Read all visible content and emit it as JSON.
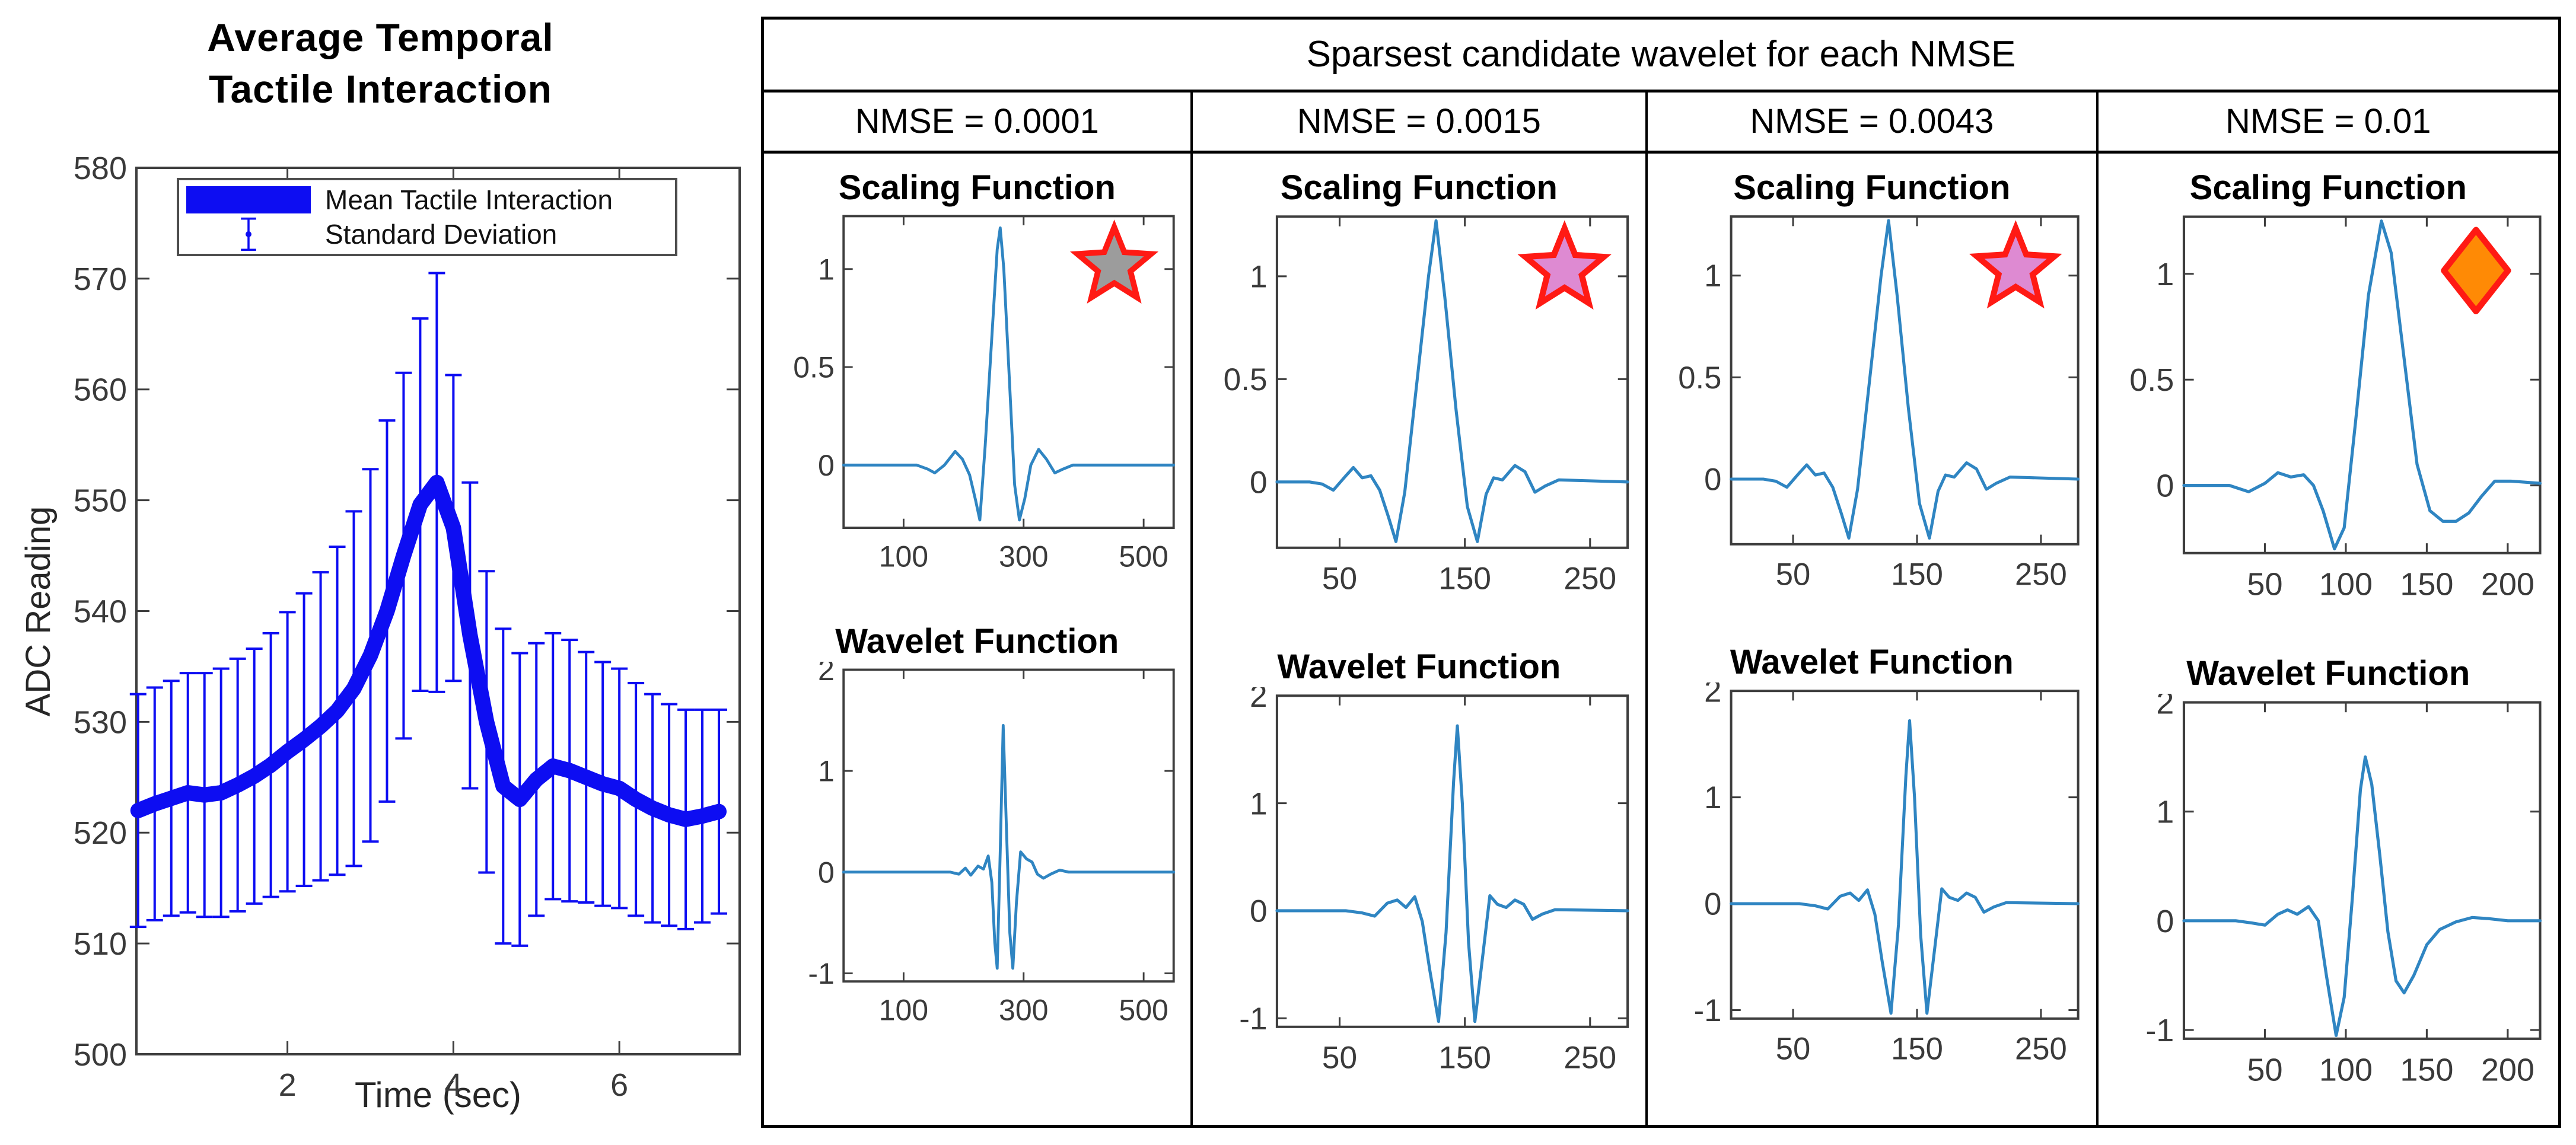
{
  "left_chart": {
    "title_line1": "Average Temporal",
    "title_line2": "Tactile Interaction",
    "ylabel": "ADC Reading",
    "xlabel": "Time (sec)",
    "legend": {
      "mean_label": "Mean Tactile Interaction",
      "std_label": "Standard Deviation"
    }
  },
  "table": {
    "title": "Sparsest candidate wavelet for each NMSE",
    "columns": [
      {
        "header": "NMSE = 0.0001"
      },
      {
        "header": "NMSE = 0.0015"
      },
      {
        "header": "NMSE = 0.0043"
      },
      {
        "header": "NMSE = 0.01"
      }
    ]
  },
  "labels": {
    "scaling_title": "Scaling Function",
    "wavelet_title": "Wavelet Function"
  },
  "colors": {
    "mean_line": "#0d0df2",
    "curve": "#2f85c2",
    "marker_stroke": "#ff1a14",
    "star_gray": "#9c9c9c",
    "star_pink": "#de8ad2",
    "diamond_orange": "#ff8a05",
    "axis": "#3e3e3e",
    "tick_text": "#3a3a3a"
  },
  "chart_data": [
    {
      "id": "svg-left",
      "type": "line",
      "title": "Average Temporal Tactile Interaction",
      "xlabel": "Time (sec)",
      "ylabel": "ADC Reading",
      "xlim": [
        0.18,
        7.45
      ],
      "ylim": [
        500,
        580
      ],
      "xticks": [
        2,
        4,
        6
      ],
      "yticks": [
        500,
        510,
        520,
        530,
        540,
        550,
        560,
        570,
        580
      ],
      "legend_position": "top-left-inside",
      "grid": false,
      "series": [
        {
          "name": "Mean Tactile Interaction",
          "x": [
            0.2,
            0.4,
            0.6,
            0.8,
            1.0,
            1.2,
            1.4,
            1.6,
            1.8,
            2.0,
            2.2,
            2.4,
            2.6,
            2.8,
            3.0,
            3.2,
            3.4,
            3.6,
            3.8,
            4.0,
            4.2,
            4.4,
            4.6,
            4.8,
            5.0,
            5.2,
            5.4,
            5.6,
            5.8,
            6.0,
            6.2,
            6.4,
            6.6,
            6.8,
            7.0,
            7.2
          ],
          "y": [
            522.0,
            522.6,
            523.1,
            523.6,
            523.4,
            523.6,
            524.3,
            525.1,
            526.1,
            527.3,
            528.4,
            529.6,
            531.0,
            533.0,
            536.0,
            540.0,
            545.0,
            549.6,
            551.6,
            547.5,
            537.8,
            530.0,
            524.2,
            523.0,
            524.8,
            526.0,
            525.6,
            525.0,
            524.4,
            524.0,
            523.0,
            522.2,
            521.6,
            521.2,
            521.5,
            521.9
          ]
        },
        {
          "name": "Standard Deviation",
          "type": "errorbar",
          "std": [
            10.5,
            10.5,
            10.6,
            10.8,
            11.0,
            11.2,
            11.4,
            11.5,
            11.9,
            12.6,
            13.2,
            13.9,
            14.8,
            16.0,
            16.8,
            17.2,
            16.5,
            16.8,
            18.9,
            13.8,
            13.8,
            13.6,
            14.2,
            13.2,
            12.3,
            12.0,
            11.8,
            11.3,
            11.0,
            10.8,
            10.5,
            10.3,
            10.0,
            9.9,
            9.6,
            9.2
          ]
        }
      ]
    },
    {
      "id": "svg-s1",
      "type": "line",
      "title": "Scaling Function",
      "nmse": "0.0001",
      "xlim": [
        0,
        550
      ],
      "ylim": [
        -0.32,
        1.27
      ],
      "xticks": [
        100,
        300,
        500
      ],
      "yticks": [
        0,
        0.5,
        1
      ],
      "marker": {
        "shape": "star",
        "fill": "#9c9c9c"
      },
      "points": [
        [
          0,
          0
        ],
        [
          122,
          0
        ],
        [
          140,
          -0.02
        ],
        [
          152,
          -0.04
        ],
        [
          168,
          0
        ],
        [
          186,
          0.07
        ],
        [
          198,
          0.03
        ],
        [
          210,
          -0.05
        ],
        [
          220,
          -0.18
        ],
        [
          227,
          -0.28
        ],
        [
          236,
          0.1
        ],
        [
          246,
          0.6
        ],
        [
          256,
          1.1
        ],
        [
          261,
          1.21
        ],
        [
          267,
          1.0
        ],
        [
          276,
          0.45
        ],
        [
          285,
          -0.1
        ],
        [
          293,
          -0.28
        ],
        [
          302,
          -0.17
        ],
        [
          312,
          0
        ],
        [
          325,
          0.08
        ],
        [
          338,
          0.03
        ],
        [
          352,
          -0.04
        ],
        [
          366,
          -0.02
        ],
        [
          382,
          0
        ],
        [
          550,
          0
        ]
      ]
    },
    {
      "id": "svg-s2",
      "type": "line",
      "title": "Scaling Function",
      "nmse": "0.0015",
      "xlim": [
        0,
        280
      ],
      "ylim": [
        -0.32,
        1.29
      ],
      "xticks": [
        50,
        150,
        250
      ],
      "yticks": [
        0,
        0.5,
        1
      ],
      "marker": {
        "shape": "star",
        "fill": "#de8ad2"
      },
      "points": [
        [
          0,
          0
        ],
        [
          26,
          0
        ],
        [
          36,
          -0.01
        ],
        [
          45,
          -0.04
        ],
        [
          55,
          0.03
        ],
        [
          61,
          0.07
        ],
        [
          68,
          0.02
        ],
        [
          75,
          0.03
        ],
        [
          82,
          -0.04
        ],
        [
          89,
          -0.17
        ],
        [
          95,
          -0.29
        ],
        [
          102,
          -0.05
        ],
        [
          112,
          0.5
        ],
        [
          121,
          1.0
        ],
        [
          127,
          1.27
        ],
        [
          134,
          0.9
        ],
        [
          143,
          0.35
        ],
        [
          152,
          -0.12
        ],
        [
          160,
          -0.29
        ],
        [
          167,
          -0.06
        ],
        [
          173,
          0.02
        ],
        [
          180,
          0.01
        ],
        [
          190,
          0.08
        ],
        [
          198,
          0.05
        ],
        [
          206,
          -0.05
        ],
        [
          214,
          -0.02
        ],
        [
          225,
          0.01
        ],
        [
          280,
          0
        ]
      ]
    },
    {
      "id": "svg-s3",
      "type": "line",
      "title": "Scaling Function",
      "nmse": "0.0043",
      "xlim": [
        0,
        280
      ],
      "ylim": [
        -0.32,
        1.29
      ],
      "xticks": [
        50,
        150,
        250
      ],
      "yticks": [
        0,
        0.5,
        1
      ],
      "marker": {
        "shape": "star",
        "fill": "#de8ad2"
      },
      "points": [
        [
          0,
          0
        ],
        [
          26,
          0
        ],
        [
          36,
          -0.01
        ],
        [
          45,
          -0.04
        ],
        [
          55,
          0.03
        ],
        [
          61,
          0.07
        ],
        [
          68,
          0.02
        ],
        [
          75,
          0.03
        ],
        [
          82,
          -0.04
        ],
        [
          89,
          -0.17
        ],
        [
          95,
          -0.29
        ],
        [
          102,
          -0.05
        ],
        [
          112,
          0.5
        ],
        [
          121,
          1.0
        ],
        [
          127,
          1.27
        ],
        [
          134,
          0.9
        ],
        [
          143,
          0.35
        ],
        [
          152,
          -0.12
        ],
        [
          160,
          -0.29
        ],
        [
          167,
          -0.06
        ],
        [
          173,
          0.02
        ],
        [
          180,
          0.01
        ],
        [
          190,
          0.08
        ],
        [
          198,
          0.05
        ],
        [
          206,
          -0.05
        ],
        [
          214,
          -0.02
        ],
        [
          225,
          0.01
        ],
        [
          280,
          0
        ]
      ]
    },
    {
      "id": "svg-s4",
      "type": "line",
      "title": "Scaling Function",
      "nmse": "0.01",
      "xlim": [
        0,
        220
      ],
      "ylim": [
        -0.32,
        1.27
      ],
      "xticks": [
        50,
        100,
        150,
        200
      ],
      "yticks": [
        0,
        0.5,
        1
      ],
      "marker": {
        "shape": "diamond",
        "fill": "#ff8a05"
      },
      "points": [
        [
          0,
          0
        ],
        [
          28,
          0
        ],
        [
          40,
          -0.03
        ],
        [
          50,
          0.01
        ],
        [
          58,
          0.06
        ],
        [
          66,
          0.04
        ],
        [
          74,
          0.05
        ],
        [
          80,
          0
        ],
        [
          86,
          -0.12
        ],
        [
          93,
          -0.3
        ],
        [
          99,
          -0.2
        ],
        [
          106,
          0.3
        ],
        [
          114,
          0.9
        ],
        [
          122,
          1.25
        ],
        [
          128,
          1.1
        ],
        [
          136,
          0.6
        ],
        [
          144,
          0.1
        ],
        [
          152,
          -0.12
        ],
        [
          160,
          -0.17
        ],
        [
          168,
          -0.17
        ],
        [
          176,
          -0.13
        ],
        [
          184,
          -0.05
        ],
        [
          192,
          0.02
        ],
        [
          202,
          0.02
        ],
        [
          220,
          0.01
        ]
      ]
    },
    {
      "id": "svg-w1",
      "type": "line",
      "title": "Wavelet Function",
      "nmse": "0.0001",
      "xlim": [
        0,
        550
      ],
      "ylim": [
        -1.08,
        2
      ],
      "xticks": [
        100,
        300,
        500
      ],
      "yticks": [
        -1,
        0,
        1,
        2
      ],
      "points": [
        [
          0,
          0
        ],
        [
          178,
          0
        ],
        [
          192,
          -0.02
        ],
        [
          203,
          0.04
        ],
        [
          212,
          -0.03
        ],
        [
          224,
          0.06
        ],
        [
          233,
          0.03
        ],
        [
          241,
          0.16
        ],
        [
          247,
          -0.1
        ],
        [
          252,
          -0.7
        ],
        [
          256,
          -0.95
        ],
        [
          261,
          0.2
        ],
        [
          266,
          1.45
        ],
        [
          271,
          0.5
        ],
        [
          277,
          -0.6
        ],
        [
          282,
          -0.95
        ],
        [
          288,
          -0.3
        ],
        [
          295,
          0.2
        ],
        [
          305,
          0.13
        ],
        [
          314,
          0.1
        ],
        [
          323,
          -0.02
        ],
        [
          333,
          -0.06
        ],
        [
          345,
          -0.02
        ],
        [
          360,
          0.02
        ],
        [
          375,
          0
        ],
        [
          550,
          0
        ]
      ]
    },
    {
      "id": "svg-w2",
      "type": "line",
      "title": "Wavelet Function",
      "nmse": "0.0015",
      "xlim": [
        0,
        280
      ],
      "ylim": [
        -1.08,
        2
      ],
      "xticks": [
        50,
        150,
        250
      ],
      "yticks": [
        -1,
        0,
        1,
        2
      ],
      "points": [
        [
          0,
          0
        ],
        [
          55,
          0
        ],
        [
          68,
          -0.02
        ],
        [
          78,
          -0.05
        ],
        [
          88,
          0.07
        ],
        [
          96,
          0.1
        ],
        [
          103,
          0.03
        ],
        [
          110,
          0.13
        ],
        [
          116,
          -0.1
        ],
        [
          122,
          -0.55
        ],
        [
          129,
          -1.03
        ],
        [
          135,
          -0.2
        ],
        [
          141,
          1.2
        ],
        [
          144,
          1.72
        ],
        [
          148,
          1.0
        ],
        [
          153,
          -0.3
        ],
        [
          158,
          -1.03
        ],
        [
          164,
          -0.45
        ],
        [
          170,
          0.14
        ],
        [
          176,
          0.06
        ],
        [
          183,
          0.03
        ],
        [
          190,
          0.1
        ],
        [
          197,
          0.06
        ],
        [
          204,
          -0.08
        ],
        [
          212,
          -0.03
        ],
        [
          222,
          0.01
        ],
        [
          280,
          0
        ]
      ]
    },
    {
      "id": "svg-w3",
      "type": "line",
      "title": "Wavelet Function",
      "nmse": "0.0043",
      "xlim": [
        0,
        280
      ],
      "ylim": [
        -1.08,
        2
      ],
      "xticks": [
        50,
        150,
        250
      ],
      "yticks": [
        -1,
        0,
        1,
        2
      ],
      "points": [
        [
          0,
          0
        ],
        [
          55,
          0
        ],
        [
          68,
          -0.02
        ],
        [
          78,
          -0.05
        ],
        [
          88,
          0.07
        ],
        [
          96,
          0.1
        ],
        [
          103,
          0.03
        ],
        [
          110,
          0.13
        ],
        [
          116,
          -0.1
        ],
        [
          122,
          -0.55
        ],
        [
          129,
          -1.03
        ],
        [
          135,
          -0.2
        ],
        [
          141,
          1.2
        ],
        [
          144,
          1.72
        ],
        [
          148,
          1.0
        ],
        [
          153,
          -0.3
        ],
        [
          158,
          -1.03
        ],
        [
          164,
          -0.45
        ],
        [
          170,
          0.14
        ],
        [
          176,
          0.06
        ],
        [
          183,
          0.03
        ],
        [
          190,
          0.1
        ],
        [
          197,
          0.06
        ],
        [
          204,
          -0.08
        ],
        [
          212,
          -0.03
        ],
        [
          222,
          0.01
        ],
        [
          280,
          0
        ]
      ]
    },
    {
      "id": "svg-w4",
      "type": "line",
      "title": "Wavelet Function",
      "nmse": "0.01",
      "xlim": [
        0,
        220
      ],
      "ylim": [
        -1.08,
        2
      ],
      "xticks": [
        50,
        100,
        150,
        200
      ],
      "yticks": [
        -1,
        0,
        1,
        2
      ],
      "points": [
        [
          0,
          0
        ],
        [
          32,
          0
        ],
        [
          42,
          -0.02
        ],
        [
          50,
          -0.04
        ],
        [
          58,
          0.06
        ],
        [
          64,
          0.1
        ],
        [
          70,
          0.06
        ],
        [
          77,
          0.13
        ],
        [
          83,
          0
        ],
        [
          88,
          -0.5
        ],
        [
          94,
          -1.05
        ],
        [
          99,
          -0.7
        ],
        [
          104,
          0.2
        ],
        [
          109,
          1.2
        ],
        [
          112,
          1.5
        ],
        [
          116,
          1.25
        ],
        [
          121,
          0.6
        ],
        [
          126,
          -0.1
        ],
        [
          131,
          -0.55
        ],
        [
          136,
          -0.66
        ],
        [
          142,
          -0.5
        ],
        [
          150,
          -0.22
        ],
        [
          158,
          -0.08
        ],
        [
          168,
          -0.01
        ],
        [
          178,
          0.03
        ],
        [
          188,
          0.02
        ],
        [
          200,
          0
        ],
        [
          220,
          0
        ]
      ]
    }
  ]
}
